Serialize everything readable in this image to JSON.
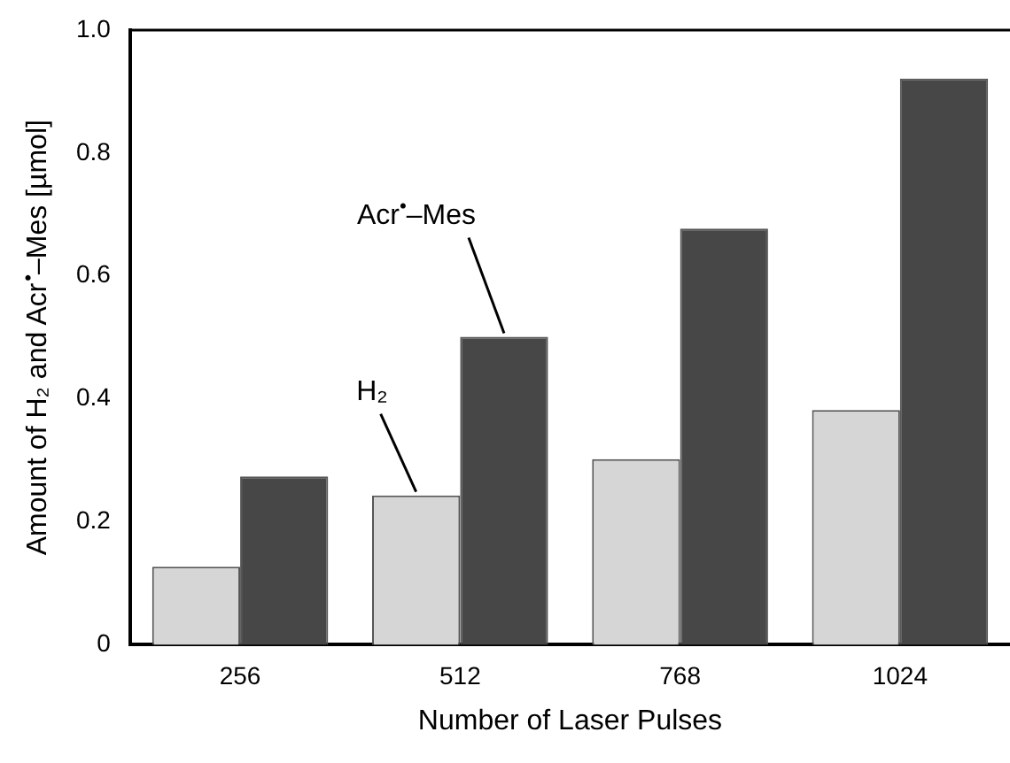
{
  "chart_data": {
    "type": "bar",
    "categories": [
      "256",
      "512",
      "768",
      "1024"
    ],
    "series": [
      {
        "name": "H₂",
        "color": "#d6d6d6",
        "values": [
          0.127,
          0.243,
          0.302,
          0.382
        ]
      },
      {
        "name": "Acr$^{•}$–Mes",
        "color": "#474747",
        "values": [
          0.274,
          0.501,
          0.677,
          0.921
        ]
      }
    ],
    "xlabel": "Number of Laser Pulses",
    "ylabel": "Amount of H₂ and Acr$^{•}$–Mes [µmol]",
    "ylim": [
      0,
      1.0
    ],
    "yticks": [
      0,
      {
        "value": 0.2,
        "label": "0.2"
      },
      {
        "value": 0.4,
        "label": "0.4"
      },
      {
        "value": 0.6,
        "label": "0.6"
      },
      {
        "value": 0.8,
        "label": "0.8"
      },
      {
        "value": 1.0,
        "label": "1.0"
      }
    ],
    "grid": false,
    "legend": false
  }
}
